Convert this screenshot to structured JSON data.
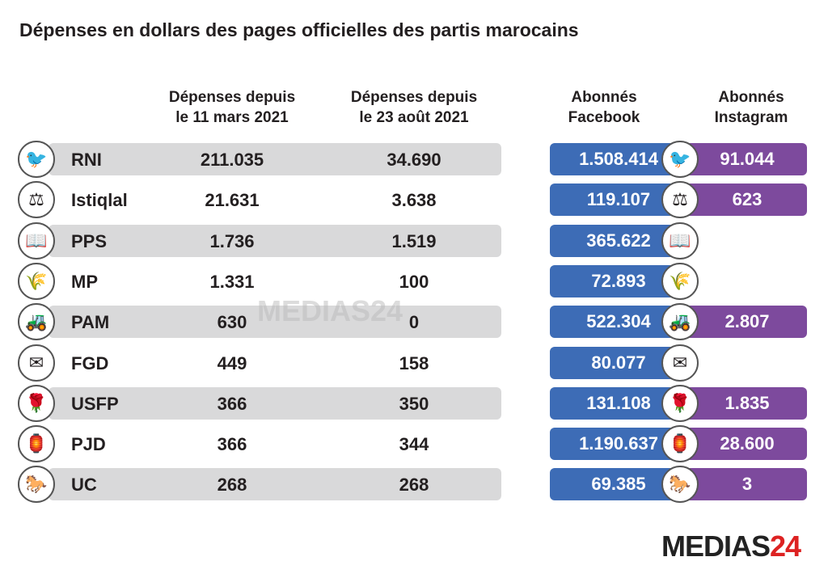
{
  "title": "Dépenses en dollars des pages officielles des partis marocains",
  "colors": {
    "facebook": "#3d6cb6",
    "instagram": "#7d4a9d",
    "band": "#d9d9da"
  },
  "chart_data": {
    "type": "table",
    "title": "Dépenses en dollars des pages officielles des partis marocains",
    "columns": [
      "Dépenses depuis le 11 mars 2021",
      "Dépenses depuis le 23 août 2021",
      "Abonnés Facebook",
      "Abonnés Instagram"
    ],
    "rows": [
      {
        "party": "RNI",
        "icon": "bird-icon",
        "spend_mar": "211.035",
        "spend_aug": "34.690",
        "facebook": "1.508.414",
        "instagram": "91.044"
      },
      {
        "party": "Istiqlal",
        "icon": "scales-icon",
        "spend_mar": "21.631",
        "spend_aug": "3.638",
        "facebook": "119.107",
        "instagram": "623"
      },
      {
        "party": "PPS",
        "icon": "book-icon",
        "spend_mar": "1.736",
        "spend_aug": "1.519",
        "facebook": "365.622",
        "instagram": ""
      },
      {
        "party": "MP",
        "icon": "wheat-icon",
        "spend_mar": "1.331",
        "spend_aug": "100",
        "facebook": "72.893",
        "instagram": ""
      },
      {
        "party": "PAM",
        "icon": "tractor-icon",
        "spend_mar": "630",
        "spend_aug": "0",
        "facebook": "522.304",
        "instagram": "2.807"
      },
      {
        "party": "FGD",
        "icon": "envelope-icon",
        "spend_mar": "449",
        "spend_aug": "158",
        "facebook": "80.077",
        "instagram": ""
      },
      {
        "party": "USFP",
        "icon": "rose-icon",
        "spend_mar": "366",
        "spend_aug": "350",
        "facebook": "131.108",
        "instagram": "1.835"
      },
      {
        "party": "PJD",
        "icon": "lamp-icon",
        "spend_mar": "366",
        "spend_aug": "344",
        "facebook": "1.190.637",
        "instagram": "28.600"
      },
      {
        "party": "UC",
        "icon": "horse-icon",
        "spend_mar": "268",
        "spend_aug": "268",
        "facebook": "69.385",
        "instagram": "3"
      }
    ]
  },
  "headers": {
    "spend_mar": [
      "Dépenses depuis",
      "le 11 mars 2021"
    ],
    "spend_aug": [
      "Dépenses depuis",
      "le 23 août 2021"
    ],
    "facebook": [
      "Abonnés",
      "Facebook"
    ],
    "instagram": [
      "Abonnés",
      "Instagram"
    ]
  },
  "watermark": "MEDIAS24",
  "logo": {
    "text": "MEDIAS",
    "num": "24"
  }
}
